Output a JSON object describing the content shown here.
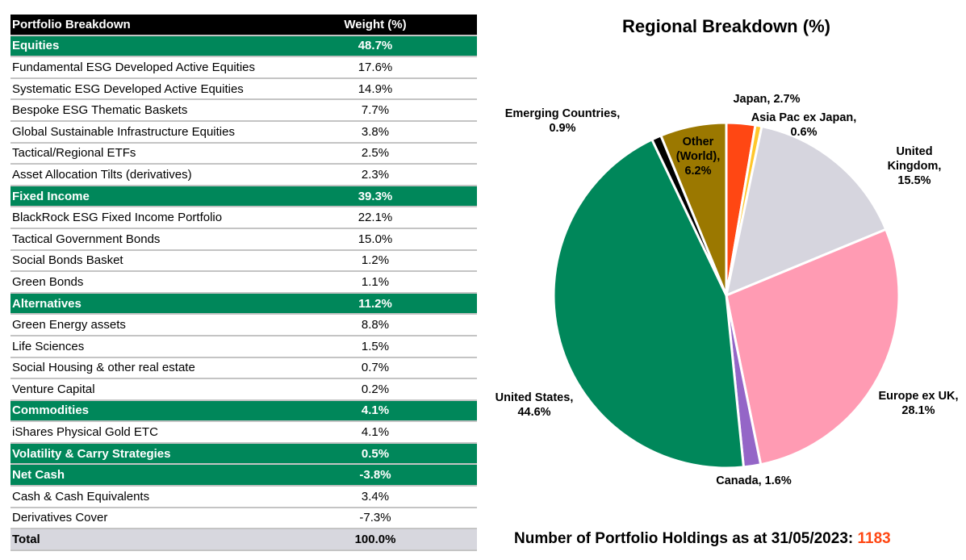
{
  "table": {
    "header": {
      "label": "Portfolio Breakdown",
      "weight": "Weight  (%)"
    },
    "rows": [
      {
        "type": "category",
        "label": "Equities",
        "weight": "48.7%"
      },
      {
        "type": "item",
        "label": "Fundamental ESG Developed Active Equities",
        "weight": "17.6%"
      },
      {
        "type": "item",
        "label": "Systematic ESG Developed Active Equities",
        "weight": "14.9%"
      },
      {
        "type": "item",
        "label": "Bespoke ESG Thematic Baskets",
        "weight": "7.7%"
      },
      {
        "type": "item",
        "label": "Global Sustainable Infrastructure Equities",
        "weight": "3.8%"
      },
      {
        "type": "item",
        "label": "Tactical/Regional ETFs",
        "weight": "2.5%"
      },
      {
        "type": "item",
        "label": "Asset Allocation Tilts (derivatives)",
        "weight": "2.3%"
      },
      {
        "type": "category",
        "label": "Fixed Income",
        "weight": "39.3%"
      },
      {
        "type": "item",
        "label": "BlackRock ESG Fixed Income Portfolio",
        "weight": "22.1%"
      },
      {
        "type": "item",
        "label": "Tactical Government Bonds",
        "weight": "15.0%"
      },
      {
        "type": "item",
        "label": "Social Bonds Basket",
        "weight": "1.2%"
      },
      {
        "type": "item",
        "label": "Green Bonds",
        "weight": "1.1%"
      },
      {
        "type": "category",
        "label": "Alternatives",
        "weight": "11.2%"
      },
      {
        "type": "item",
        "label": "Green Energy assets",
        "weight": "8.8%"
      },
      {
        "type": "item",
        "label": "Life Sciences",
        "weight": "1.5%"
      },
      {
        "type": "item",
        "label": "Social Housing & other real estate",
        "weight": "0.7%"
      },
      {
        "type": "item",
        "label": "Venture Capital",
        "weight": "0.2%"
      },
      {
        "type": "category",
        "label": "Commodities",
        "weight": "4.1%"
      },
      {
        "type": "item",
        "label": "iShares Physical Gold ETC",
        "weight": "4.1%"
      },
      {
        "type": "category",
        "label": "Volatility & Carry Strategies",
        "weight": "0.5%"
      },
      {
        "type": "category",
        "label": "Net Cash",
        "weight": "-3.8%"
      },
      {
        "type": "item",
        "label": "Cash & Cash Equivalents",
        "weight": "3.4%"
      },
      {
        "type": "item",
        "label": "Derivatives Cover",
        "weight": "-7.3%"
      },
      {
        "type": "total",
        "label": "Total",
        "weight": "100.0%"
      }
    ]
  },
  "chart_data": {
    "type": "pie",
    "title": "Regional Breakdown (%)",
    "start": "top",
    "direction": "clockwise",
    "slices": [
      {
        "name": "Japan",
        "value": 2.7,
        "label": "Japan, 2.7%",
        "color": "#ff4713"
      },
      {
        "name": "Asia Pac ex Japan",
        "value": 0.6,
        "label": "Asia Pac ex Japan,\n0.6%",
        "color": "#ffc72c"
      },
      {
        "name": "United Kingdom",
        "value": 15.5,
        "label": "United\nKingdom,\n15.5%",
        "color": "#d6d5de"
      },
      {
        "name": "Europe ex UK",
        "value": 28.1,
        "label": "Europe ex UK,\n28.1%",
        "color": "#ff9bb3"
      },
      {
        "name": "Canada",
        "value": 1.6,
        "label": "Canada, 1.6%",
        "color": "#9466c7"
      },
      {
        "name": "United States",
        "value": 44.6,
        "label": "United States,\n44.6%",
        "color": "#00875a"
      },
      {
        "name": "Emerging Countries",
        "value": 0.9,
        "label": "Emerging Countries,\n0.9%",
        "color": "#000000"
      },
      {
        "name": "Other (World)",
        "value": 6.2,
        "label": "Other\n(World),\n6.2%",
        "color": "#9b7800"
      }
    ]
  },
  "footer": {
    "holdings_label": "Number of Portfolio Holdings as at 31/05/2023: ",
    "holdings_count": "1183"
  }
}
